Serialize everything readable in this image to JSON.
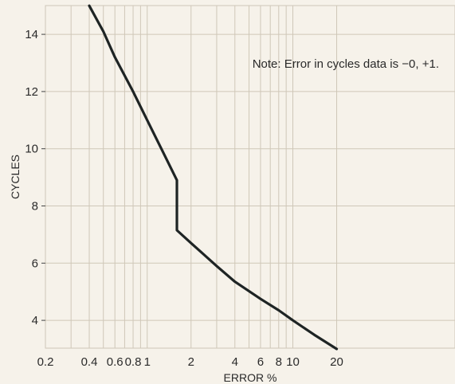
{
  "chart_data": {
    "type": "line",
    "title": "",
    "xlabel": "ERROR %",
    "ylabel": "CYCLES",
    "x_scale": "log",
    "xlim": [
      0.2,
      25
    ],
    "ylim": [
      3,
      15
    ],
    "x_ticks": [
      0.2,
      0.4,
      0.6,
      0.8,
      1,
      2,
      4,
      6,
      8,
      10,
      20
    ],
    "x_tick_labels": [
      "0.2",
      "0.4",
      "0.6",
      "0.8",
      "1",
      "2",
      "4",
      "6",
      "8",
      "10",
      "20"
    ],
    "x_minor_grid": [
      0.3,
      0.5,
      0.7,
      0.9,
      3,
      5,
      7,
      9
    ],
    "y_ticks": [
      4,
      6,
      8,
      10,
      12,
      14
    ],
    "y_tick_labels": [
      "4",
      "6",
      "8",
      "10",
      "12",
      "14"
    ],
    "grid": true,
    "annotation": "Note: Error in cycles data is −0, +1.",
    "colors": {
      "background": "#f6f2ea",
      "grid": "#cfc7b8",
      "line": "#1e2424",
      "text": "#2a2a2a"
    },
    "series": [
      {
        "x": [
          0.4,
          0.5,
          0.6,
          0.8,
          1.0,
          1.25,
          1.6,
          1.6,
          2.0,
          3.0,
          4.0,
          6.0,
          8.0,
          10.0,
          14.0,
          20.0
        ],
        "y": [
          15.0,
          14.1,
          13.2,
          12.0,
          11.0,
          10.0,
          8.9,
          7.15,
          6.7,
          5.9,
          5.35,
          4.75,
          4.35,
          4.0,
          3.5,
          3.0
        ]
      }
    ]
  }
}
